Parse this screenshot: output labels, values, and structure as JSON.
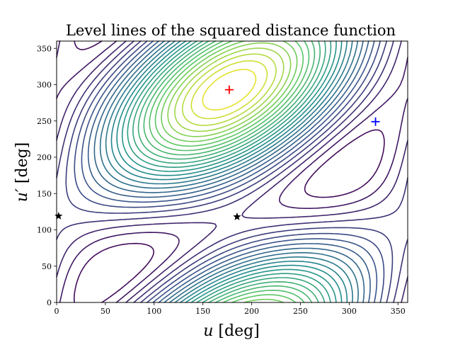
{
  "chart_data": {
    "type": "contour",
    "title": "Level lines of the squared distance function",
    "xlabel_var": "u",
    "xlabel_unit": "[deg]",
    "ylabel_var": "u′",
    "ylabel_unit": "[deg]",
    "xlim": [
      0,
      360
    ],
    "ylim": [
      0,
      360
    ],
    "xticks": [
      0,
      50,
      100,
      150,
      200,
      250,
      300,
      350
    ],
    "yticks": [
      0,
      50,
      100,
      150,
      200,
      250,
      300,
      350
    ],
    "colormap": [
      "#440154",
      "#3b528b",
      "#21918c",
      "#5ec962",
      "#fde725"
    ],
    "markers": [
      {
        "x": 177,
        "y": 293,
        "symbol": "+",
        "color": "#ff0000",
        "meaning": "maximum"
      },
      {
        "x": 327,
        "y": 249,
        "symbol": "+",
        "color": "#0000ff",
        "meaning": "minimum"
      },
      {
        "x": 2,
        "y": 119,
        "symbol": "star",
        "color": "#000000"
      },
      {
        "x": 185,
        "y": 118,
        "symbol": "star",
        "color": "#000000"
      }
    ]
  }
}
